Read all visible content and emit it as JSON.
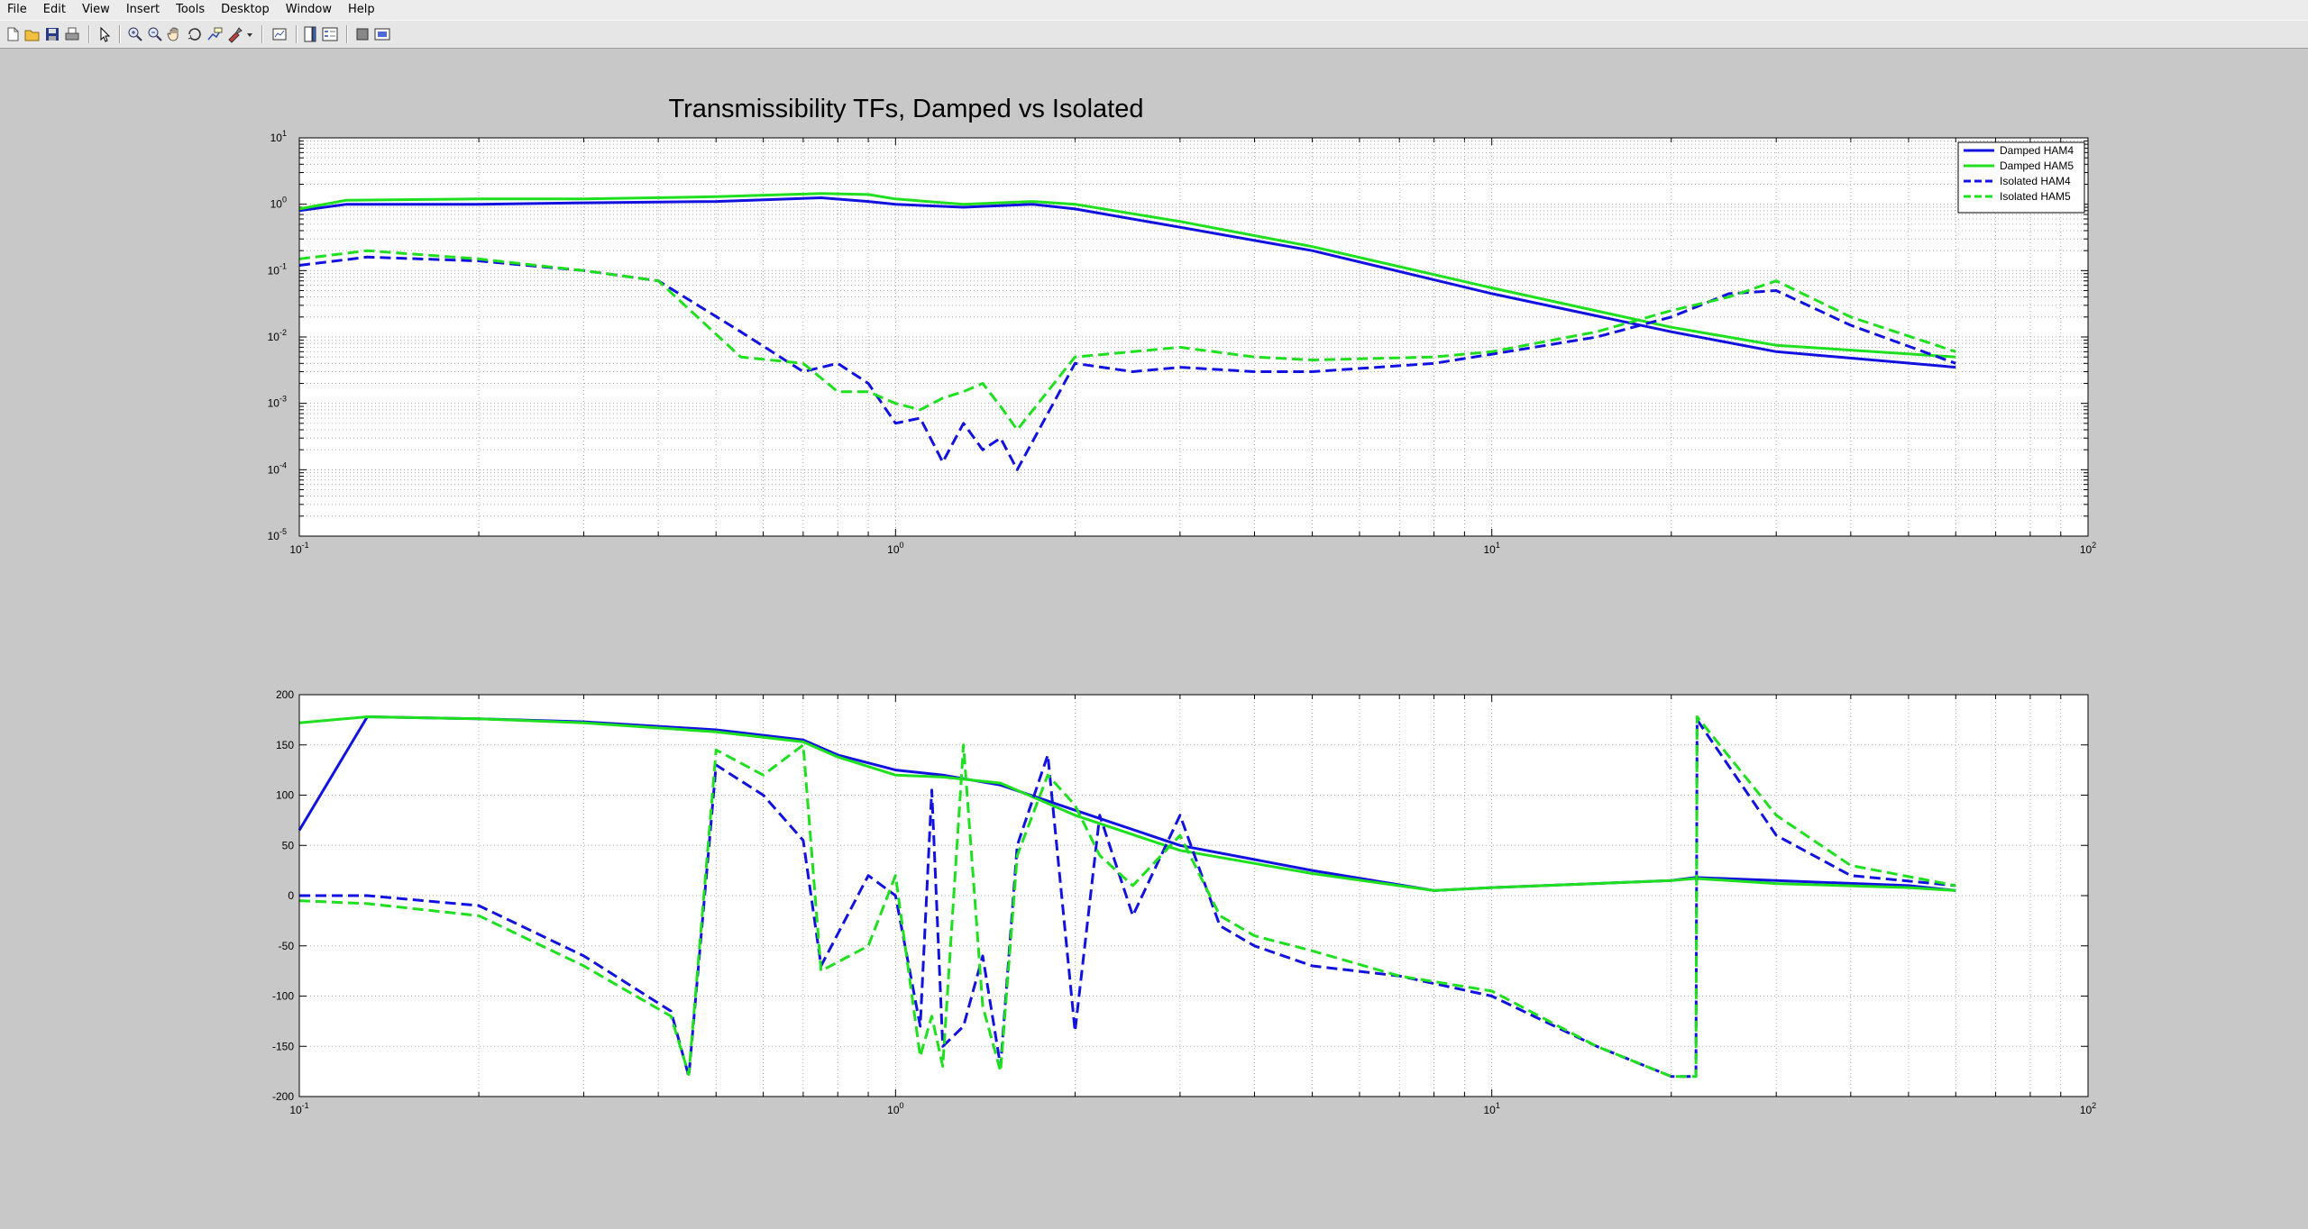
{
  "menu": [
    "File",
    "Edit",
    "View",
    "Insert",
    "Tools",
    "Desktop",
    "Window",
    "Help"
  ],
  "toolbar": {
    "buttons": [
      {
        "name": "new-figure-icon"
      },
      {
        "name": "open-file-icon"
      },
      {
        "name": "save-figure-icon"
      },
      {
        "name": "print-figure-icon"
      },
      {
        "name": "edit-plot-arrow-icon"
      },
      {
        "name": "zoom-in-icon"
      },
      {
        "name": "zoom-out-icon"
      },
      {
        "name": "pan-hand-icon"
      },
      {
        "name": "rotate-3d-icon"
      },
      {
        "name": "data-cursor-icon"
      },
      {
        "name": "brush-data-icon"
      },
      {
        "name": "brush-dropdown-icon"
      },
      {
        "name": "link-plot-icon"
      },
      {
        "name": "insert-colorbar-icon"
      },
      {
        "name": "insert-legend-icon"
      },
      {
        "name": "hide-plot-tools-icon"
      },
      {
        "name": "show-plot-tools-icon"
      }
    ]
  },
  "colors": {
    "figure_bg": "#c8c8c8",
    "ham4": "#1212e0",
    "ham5": "#1ee01e"
  },
  "chart_data": [
    {
      "type": "line",
      "title": "Transmissibility TFs, Damped vs Isolated",
      "xscale": "log",
      "yscale": "log",
      "xlim": [
        0.1,
        100
      ],
      "ylim": [
        1e-05,
        10
      ],
      "grid": "on (major and minor)",
      "legend_location": "top-right",
      "x_ticks": [
        {
          "base": "10",
          "exp": "-1"
        },
        {
          "base": "10",
          "exp": "0"
        },
        {
          "base": "10",
          "exp": "1"
        },
        {
          "base": "10",
          "exp": "2"
        }
      ],
      "y_ticks": [
        {
          "base": "10",
          "exp": "1"
        },
        {
          "base": "10",
          "exp": "0"
        },
        {
          "base": "10",
          "exp": "-1"
        },
        {
          "base": "10",
          "exp": "-2"
        },
        {
          "base": "10",
          "exp": "-3"
        },
        {
          "base": "10",
          "exp": "-4"
        },
        {
          "base": "10",
          "exp": "-5"
        }
      ],
      "series": [
        {
          "name": "Damped HAM4",
          "color": "#1212e0",
          "style": "solid",
          "x": [
            0.1,
            0.12,
            0.2,
            0.3,
            0.5,
            0.75,
            0.9,
            1.0,
            1.3,
            1.7,
            2.0,
            3.0,
            5.0,
            10.0,
            20.0,
            30.0,
            60.0
          ],
          "y": [
            0.8,
            1.0,
            1.0,
            1.05,
            1.1,
            1.25,
            1.1,
            1.0,
            0.9,
            1.0,
            0.85,
            0.45,
            0.2,
            0.045,
            0.012,
            0.006,
            0.0035
          ]
        },
        {
          "name": "Damped HAM5",
          "color": "#1ee01e",
          "style": "solid",
          "x": [
            0.1,
            0.12,
            0.2,
            0.3,
            0.5,
            0.75,
            0.9,
            1.0,
            1.3,
            1.7,
            2.0,
            3.0,
            5.0,
            10.0,
            20.0,
            30.0,
            60.0
          ],
          "y": [
            0.85,
            1.15,
            1.2,
            1.2,
            1.3,
            1.45,
            1.4,
            1.2,
            1.0,
            1.1,
            1.0,
            0.55,
            0.23,
            0.055,
            0.014,
            0.0075,
            0.005
          ]
        },
        {
          "name": "Isolated HAM4",
          "color": "#1212e0",
          "style": "dashed",
          "x": [
            0.1,
            0.13,
            0.2,
            0.3,
            0.4,
            0.55,
            0.7,
            0.8,
            0.9,
            1.0,
            1.1,
            1.2,
            1.3,
            1.4,
            1.5,
            1.6,
            2.0,
            2.5,
            3.0,
            4.0,
            5.0,
            8.0,
            10.0,
            15.0,
            20.0,
            25.0,
            30.0,
            40.0,
            60.0
          ],
          "y": [
            0.12,
            0.16,
            0.14,
            0.1,
            0.07,
            0.012,
            0.003,
            0.004,
            0.002,
            0.0005,
            0.0006,
            0.00013,
            0.0005,
            0.0002,
            0.0003,
            0.0001,
            0.004,
            0.003,
            0.0035,
            0.003,
            0.003,
            0.004,
            0.0055,
            0.01,
            0.02,
            0.045,
            0.05,
            0.015,
            0.004
          ]
        },
        {
          "name": "Isolated HAM5",
          "color": "#1ee01e",
          "style": "dashed",
          "x": [
            0.1,
            0.13,
            0.2,
            0.3,
            0.4,
            0.55,
            0.7,
            0.8,
            0.9,
            1.0,
            1.1,
            1.2,
            1.3,
            1.4,
            1.5,
            1.6,
            2.0,
            2.5,
            3.0,
            4.0,
            5.0,
            8.0,
            10.0,
            15.0,
            20.0,
            25.0,
            30.0,
            40.0,
            60.0
          ],
          "y": [
            0.15,
            0.2,
            0.15,
            0.1,
            0.07,
            0.005,
            0.004,
            0.0015,
            0.0015,
            0.001,
            0.0008,
            0.0012,
            0.0015,
            0.002,
            0.0009,
            0.0004,
            0.005,
            0.006,
            0.007,
            0.005,
            0.0045,
            0.005,
            0.006,
            0.012,
            0.025,
            0.04,
            0.07,
            0.02,
            0.006
          ]
        }
      ]
    },
    {
      "type": "line",
      "xscale": "log",
      "xlim": [
        0.1,
        100
      ],
      "ylim": [
        -200,
        200
      ],
      "grid": "on",
      "x_ticks": [
        {
          "base": "10",
          "exp": "-1"
        },
        {
          "base": "10",
          "exp": "0"
        },
        {
          "base": "10",
          "exp": "1"
        },
        {
          "base": "10",
          "exp": "2"
        }
      ],
      "y_ticks": [
        "200",
        "150",
        "100",
        "50",
        "0",
        "-50",
        "-100",
        "-150",
        "-200"
      ],
      "series": [
        {
          "name": "Damped HAM4",
          "color": "#1212e0",
          "style": "solid",
          "x": [
            0.1,
            0.13,
            0.2,
            0.3,
            0.5,
            0.7,
            0.8,
            1.0,
            1.2,
            1.5,
            2.0,
            3.0,
            5.0,
            8.0,
            10.0,
            20.0,
            22.0,
            30.0,
            50.0,
            60.0
          ],
          "y": [
            65,
            178,
            176,
            173,
            165,
            155,
            140,
            125,
            120,
            110,
            85,
            50,
            25,
            5,
            8,
            15,
            18,
            15,
            10,
            5
          ]
        },
        {
          "name": "Damped HAM5",
          "color": "#1ee01e",
          "style": "solid",
          "x": [
            0.1,
            0.13,
            0.2,
            0.3,
            0.5,
            0.7,
            0.8,
            1.0,
            1.2,
            1.5,
            2.0,
            3.0,
            5.0,
            8.0,
            10.0,
            20.0,
            22.0,
            30.0,
            50.0,
            60.0
          ],
          "y": [
            172,
            178,
            176,
            172,
            163,
            153,
            138,
            120,
            118,
            112,
            80,
            45,
            22,
            5,
            8,
            15,
            17,
            12,
            8,
            5
          ]
        },
        {
          "name": "Isolated HAM4",
          "color": "#1212e0",
          "style": "dashed",
          "x": [
            0.1,
            0.13,
            0.2,
            0.3,
            0.42,
            0.45,
            0.5,
            0.6,
            0.7,
            0.75,
            0.9,
            1.0,
            1.1,
            1.15,
            1.2,
            1.3,
            1.4,
            1.5,
            1.6,
            1.8,
            2.0,
            2.2,
            2.5,
            3.0,
            3.5,
            4.0,
            5.0,
            7.0,
            10.0,
            15.0,
            20.0,
            22.0,
            22.1,
            30.0,
            40.0,
            60.0
          ],
          "y": [
            0,
            0,
            -10,
            -60,
            -115,
            -180,
            130,
            100,
            55,
            -70,
            20,
            0,
            -130,
            105,
            -150,
            -130,
            -60,
            -170,
            50,
            140,
            -135,
            80,
            -20,
            80,
            -30,
            -50,
            -70,
            -80,
            -100,
            -150,
            -180,
            -180,
            175,
            60,
            20,
            10
          ]
        },
        {
          "name": "Isolated HAM5",
          "color": "#1ee01e",
          "style": "dashed",
          "x": [
            0.1,
            0.13,
            0.2,
            0.3,
            0.42,
            0.45,
            0.5,
            0.6,
            0.7,
            0.75,
            0.9,
            1.0,
            1.1,
            1.15,
            1.2,
            1.3,
            1.4,
            1.5,
            1.6,
            1.8,
            2.0,
            2.2,
            2.5,
            3.0,
            3.5,
            4.0,
            5.0,
            7.0,
            10.0,
            15.0,
            20.0,
            22.0,
            22.1,
            30.0,
            40.0,
            60.0
          ],
          "y": [
            -5,
            -8,
            -20,
            -70,
            -120,
            -178,
            145,
            120,
            150,
            -75,
            -50,
            20,
            -160,
            -120,
            -170,
            150,
            -110,
            -175,
            40,
            120,
            90,
            40,
            10,
            60,
            -20,
            -40,
            -55,
            -80,
            -95,
            -150,
            -180,
            -180,
            178,
            80,
            30,
            10
          ]
        }
      ]
    }
  ]
}
